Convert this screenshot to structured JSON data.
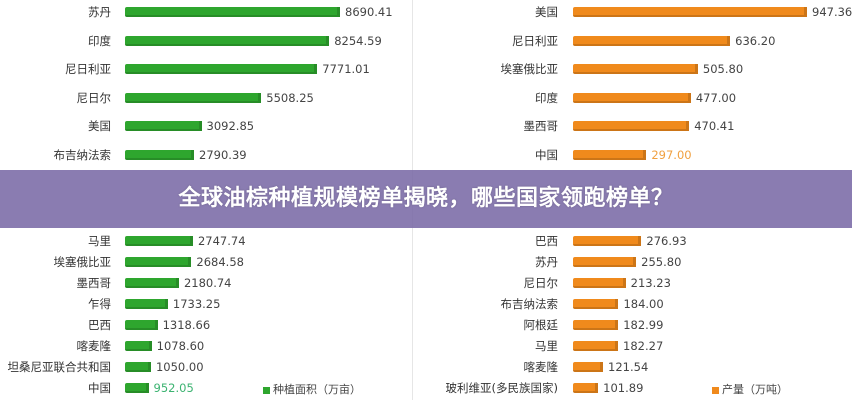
{
  "banner": {
    "title": "全球油棕种植规模榜单揭晓，哪些国家领跑榜单？"
  },
  "chart_data": [
    {
      "type": "bar",
      "orientation": "horizontal",
      "categories": [
        "苏丹",
        "印度",
        "尼日利亚",
        "尼日尔",
        "美国",
        "布吉纳法索",
        "马里",
        "埃塞俄比亚",
        "墨西哥",
        "乍得",
        "巴西",
        "喀麦隆",
        "坦桑尼亚联合共和国",
        "中国"
      ],
      "series": [
        {
          "name": "种植面积（万亩）",
          "values": [
            8690.41,
            8254.59,
            7771.01,
            5508.25,
            3092.85,
            2790.39,
            2747.74,
            2684.58,
            2180.74,
            1733.25,
            1318.66,
            1078.6,
            1050.0,
            952.05
          ]
        }
      ],
      "value_labels": [
        "8690.41",
        "8254.59",
        "7771.01",
        "5508.25",
        "3092.85",
        "2790.39",
        "2747.74",
        "2684.58",
        "2180.74",
        "1733.25",
        "1318.66",
        "1078.60",
        "1050.00",
        "952.05"
      ],
      "highlight_category": "中国",
      "color": "#2ea62e",
      "highlight_label_color": "#3cb371",
      "legend": "bottom-right",
      "grid": false
    },
    {
      "type": "bar",
      "orientation": "horizontal",
      "categories": [
        "美国",
        "尼日利亚",
        "埃塞俄比亚",
        "印度",
        "墨西哥",
        "中国",
        "巴西",
        "苏丹",
        "尼日尔",
        "布吉纳法索",
        "阿根廷",
        "马里",
        "喀麦隆",
        "玻利维亚(多民族国家)"
      ],
      "series": [
        {
          "name": "产量（万吨）",
          "values": [
            947.36,
            636.2,
            505.8,
            477.0,
            470.41,
            297.0,
            276.93,
            255.8,
            213.23,
            184.0,
            182.99,
            182.27,
            121.54,
            101.89
          ]
        }
      ],
      "value_labels": [
        "947.36",
        "636.20",
        "505.80",
        "477.00",
        "470.41",
        "297.00",
        "276.93",
        "255.80",
        "213.23",
        "184.00",
        "182.99",
        "182.27",
        "121.54",
        "101.89"
      ],
      "highlight_category": "中国",
      "color": "#f08a1c",
      "highlight_label_color": "#f0a040",
      "legend": "bottom-right",
      "grid": false
    }
  ]
}
